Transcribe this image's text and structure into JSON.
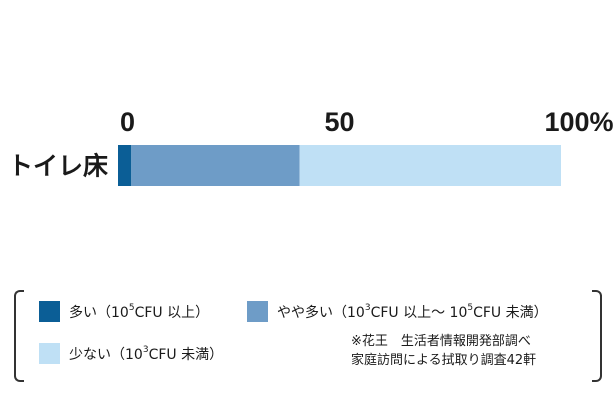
{
  "chart_data": {
    "type": "bar",
    "orientation": "horizontal",
    "stacked": true,
    "categories": [
      "トイレ床"
    ],
    "series": [
      {
        "name": "多い",
        "values": [
          3
        ],
        "color": "#0b5e96"
      },
      {
        "name": "やや多い",
        "values": [
          38
        ],
        "color": "#6e9cc7"
      },
      {
        "name": "少ない",
        "values": [
          59
        ],
        "color": "#bfe0f5"
      }
    ],
    "xlim": [
      0,
      100
    ],
    "x_ticks": [
      "0",
      "50",
      "100%"
    ],
    "x_tick_values": [
      0,
      50,
      100
    ],
    "grid": false,
    "legend_position": "bottom"
  },
  "legend": {
    "items": [
      {
        "label_pre": "多い（10",
        "sup": "5",
        "label_post": "CFU 以上）",
        "color": "#0b5e96"
      },
      {
        "label_pre": "やや多い（10",
        "sup": "3",
        "label_post": "CFU 以上〜 10",
        "sup2": "5",
        "label_post2": "CFU 未満）",
        "color": "#6e9cc7"
      },
      {
        "label_pre": "少ない（10",
        "sup": "3",
        "label_post": "CFU 未満）",
        "color": "#bfe0f5"
      }
    ]
  },
  "note": {
    "line1": "※花王　生活者情報開発部調べ",
    "line2": "家庭訪問による拭取り調査42軒"
  }
}
